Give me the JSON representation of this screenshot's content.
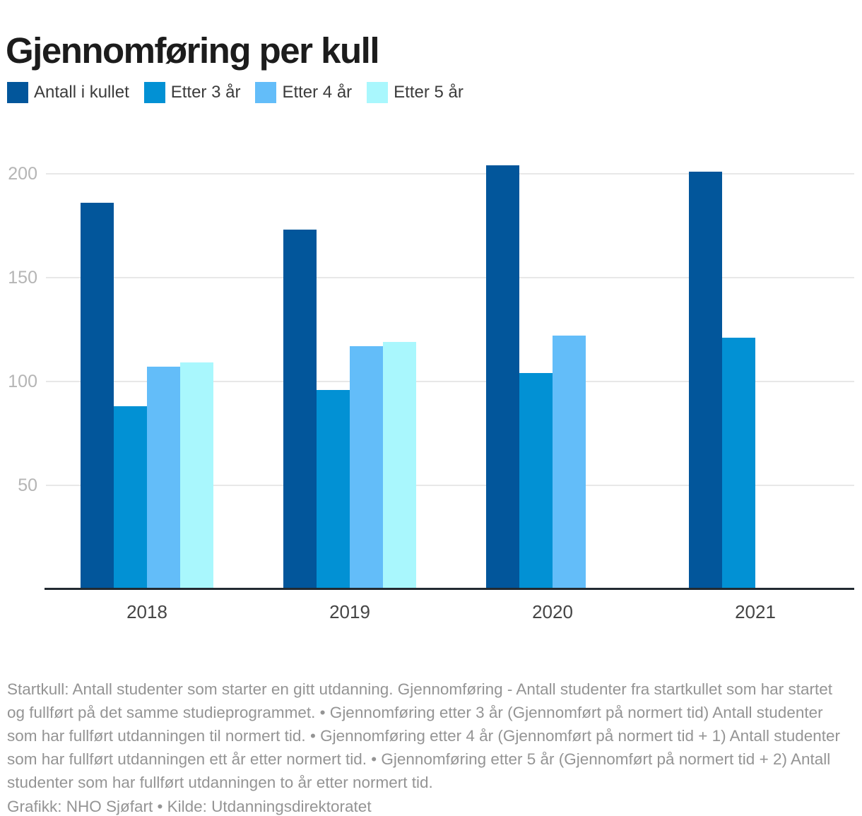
{
  "title": "Gjennomføring per kull",
  "chart_data": {
    "type": "bar",
    "title": "Gjennomføring per kull",
    "categories": [
      "2018",
      "2019",
      "2020",
      "2021"
    ],
    "series": [
      {
        "name": "Antall i kullet",
        "color": "#02569b",
        "values": [
          186,
          173,
          204,
          201
        ]
      },
      {
        "name": "Etter 3 år",
        "color": "#0291d4",
        "values": [
          88,
          96,
          104,
          121
        ]
      },
      {
        "name": "Etter 4 år",
        "color": "#63bdf9",
        "values": [
          107,
          117,
          122,
          null
        ]
      },
      {
        "name": "Etter 5 år",
        "color": "#a9f7fd",
        "values": [
          109,
          119,
          null,
          null
        ]
      }
    ],
    "xlabel": "",
    "ylabel": "",
    "ylim": [
      0,
      210
    ],
    "yticks": [
      50,
      100,
      150,
      200
    ],
    "grid": true,
    "legend_position": "top-left",
    "axis_color": "#222a31",
    "gridline_color": "#e8e8e8"
  },
  "footer": {
    "description": "Startkull: Antall studenter som starter en gitt utdanning. Gjennomføring - Antall studenter fra startkullet som har startet og fullført på det samme studieprogrammet. • Gjennomføring etter 3 år (Gjennomført på normert tid) Antall studenter som har fullført utdanningen til normert tid. • Gjennomføring etter 4 år (Gjennomført på normert tid + 1) Antall studenter som har fullført utdanningen ett år etter normert tid. • Gjennomføring etter 5 år (Gjennomført på normert tid + 2) Antall studenter som har fullført utdanningen to år etter normert tid.",
    "credit": "Grafikk: NHO Sjøfart • Kilde: Utdanningsdirektoratet"
  }
}
